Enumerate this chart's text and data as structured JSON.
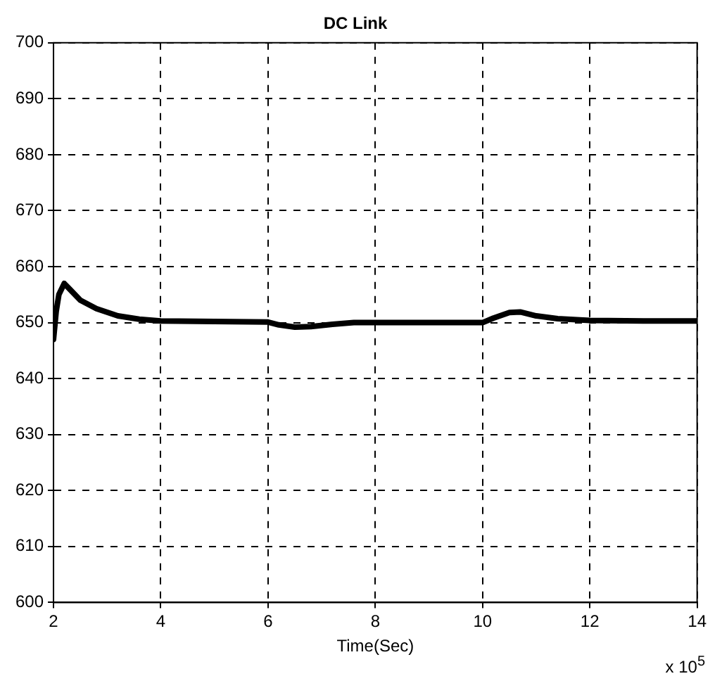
{
  "chart_data": {
    "type": "line",
    "title": "DC Link",
    "xlabel": "Time(Sec)",
    "annotations": [
      "x 10$^{5}$"
    ],
    "x": [
      2.0,
      2.05,
      2.1,
      2.2,
      2.3,
      2.5,
      2.8,
      3.2,
      3.6,
      4,
      5,
      6,
      6.2,
      6.5,
      6.8,
      7.2,
      7.6,
      8,
      9,
      10,
      10.2,
      10.5,
      10.7,
      11.0,
      11.4,
      12,
      13,
      14
    ],
    "series": [
      {
        "color": "#000000",
        "values": [
          647,
          652,
          655,
          657,
          656,
          654,
          652.5,
          651.2,
          650.6,
          650.3,
          650.2,
          650.1,
          649.6,
          649.2,
          649.3,
          649.7,
          650,
          650,
          650,
          650,
          650.8,
          651.8,
          651.9,
          651.2,
          650.7,
          650.4,
          650.3,
          650.3
        ]
      }
    ],
    "xlim": [
      2,
      14
    ],
    "xticks": [
      2,
      4,
      6,
      8,
      10,
      12,
      14
    ],
    "ylim": [
      600,
      700
    ],
    "yticks": [
      600,
      610,
      620,
      630,
      640,
      650,
      660,
      670,
      680,
      690,
      700
    ],
    "grid": true,
    "legend": false,
    "marker": "none",
    "line_style": "solid"
  }
}
